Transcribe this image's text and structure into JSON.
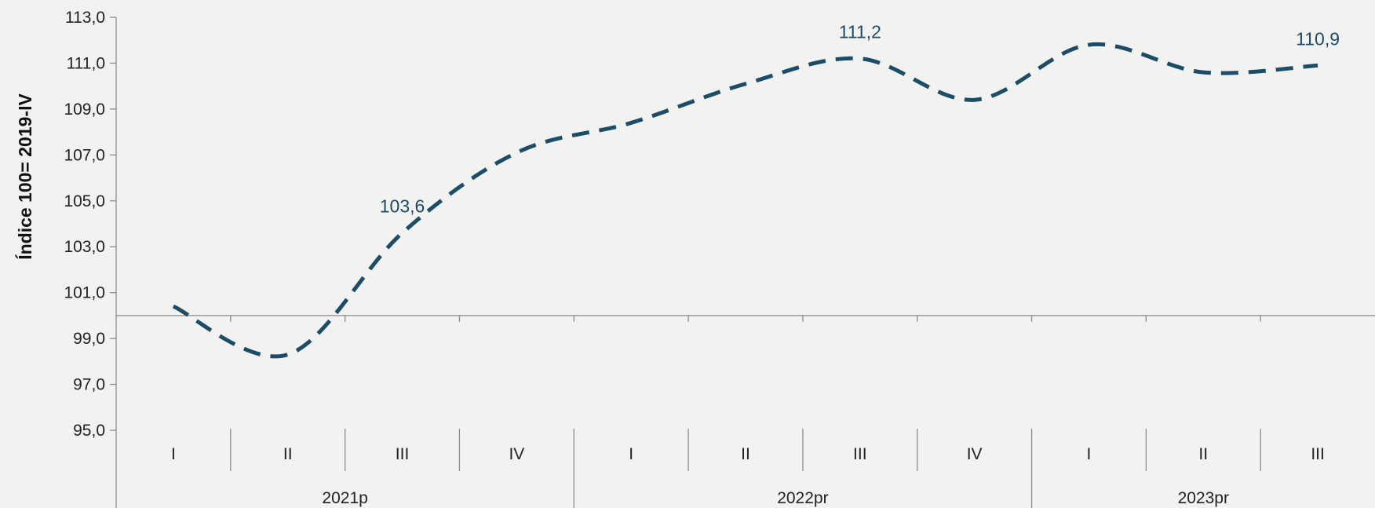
{
  "chart_data": {
    "type": "line",
    "ylabel": "Índice 100= 2019-IV",
    "ylim": [
      95,
      113
    ],
    "yticks": [
      "95,0",
      "97,0",
      "99,0",
      "101,0",
      "103,0",
      "105,0",
      "107,0",
      "109,0",
      "111,0",
      "113,0"
    ],
    "baseline": 100,
    "categories": [
      "I",
      "II",
      "III",
      "IV",
      "I",
      "II",
      "III",
      "IV",
      "I",
      "II",
      "III"
    ],
    "groups": [
      {
        "label": "2021p",
        "count": 4
      },
      {
        "label": "2022pr",
        "count": 4
      },
      {
        "label": "2023pr",
        "count": 3
      }
    ],
    "series": [
      {
        "values": [
          100.4,
          98.3,
          103.6,
          107.1,
          108.4,
          110.1,
          111.2,
          109.4,
          111.8,
          110.6,
          110.9
        ],
        "color": "#1c4d68",
        "style": "dashed"
      }
    ],
    "data_labels": [
      {
        "index": 2,
        "text": "103,6"
      },
      {
        "index": 6,
        "text": "111,2"
      },
      {
        "index": 10,
        "text": "110,9"
      }
    ],
    "grid": false
  }
}
